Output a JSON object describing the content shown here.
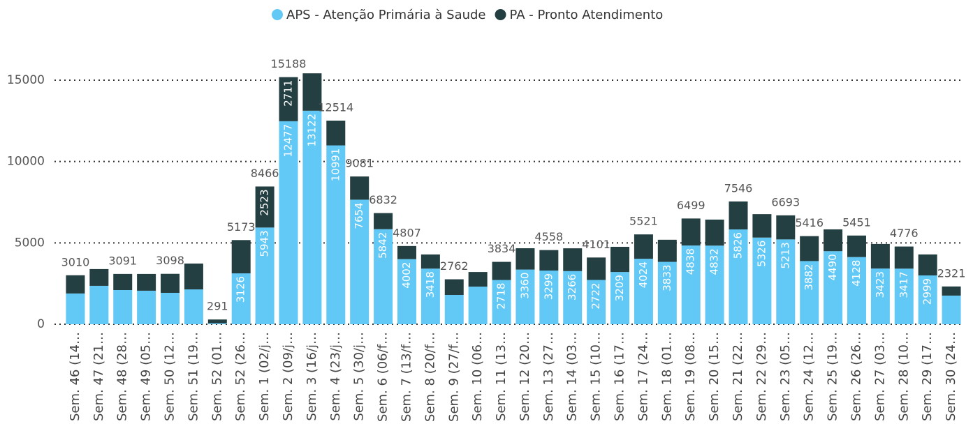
{
  "chart_data": {
    "type": "stacked-bar",
    "categories": [
      "Sem. 46 (14…",
      "Sem. 47 (21…",
      "Sem. 48 (28…",
      "Sem. 49 (05…",
      "Sem. 50 (12…",
      "Sem. 51 (19…",
      "Sem. 52 (01…",
      "Sem. 52 (26…",
      "Sem. 1 (02/j…",
      "Sem. 2 (09/j…",
      "Sem. 3 (16/j…",
      "Sem. 4 (23/j…",
      "Sem. 5 (30/j…",
      "Sem. 6 (06/f…",
      "Sem. 7 (13/f…",
      "Sem. 8 (20/f…",
      "Sem. 9 (27/f…",
      "Sem. 10 (06…",
      "Sem. 11 (13…",
      "Sem. 12 (20…",
      "Sem. 13 (27…",
      "Sem. 14 (03…",
      "Sem. 15 (10…",
      "Sem. 16 (17…",
      "Sem. 17 (24…",
      "Sem. 18 (01…",
      "Sem. 19 (08…",
      "Sem. 20 (15…",
      "Sem. 21 (22…",
      "Sem. 22 (29…",
      "Sem. 23 (05…",
      "Sem. 24 (12…",
      "Sem. 25 (19…",
      "Sem. 26 (26…",
      "Sem. 27 (03…",
      "Sem. 28 (10…",
      "Sem. 29 (17…",
      "Sem. 30 (24…"
    ],
    "series": [
      {
        "name": "APS - Atenção Primária à Saude",
        "color": "#62C8F6",
        "values": [
          1890,
          2360,
          2100,
          2060,
          1930,
          2140,
          60,
          3126,
          5943,
          12477,
          13122,
          10991,
          7654,
          5842,
          4002,
          3418,
          1800,
          2310,
          2718,
          3360,
          3299,
          3266,
          2722,
          3209,
          4024,
          3833,
          4838,
          4832,
          5826,
          5326,
          5213,
          3882,
          4490,
          4128,
          3423,
          3417,
          2999,
          1760
        ],
        "value_labels": [
          null,
          null,
          null,
          null,
          null,
          null,
          null,
          "3126",
          "5943",
          "12477",
          "13122",
          "10991",
          "7654",
          "5842",
          "4002",
          "3418",
          null,
          null,
          "2718",
          "3360",
          "3299",
          "3266",
          "2722",
          "3209",
          "4024",
          "3833",
          "4838",
          "4832",
          "5826",
          "5326",
          "5213",
          "3882",
          "4490",
          "4128",
          "3423",
          "3417",
          "2999",
          null
        ]
      },
      {
        "name": "PA - Pronto Atendimento",
        "color": "#243F42",
        "values": [
          1120,
          1030,
          991,
          1030,
          1168,
          1590,
          231,
          2047,
          2523,
          2711,
          2300,
          1523,
          1427,
          990,
          805,
          870,
          962,
          900,
          1116,
          1310,
          1259,
          1400,
          1379,
          1550,
          1497,
          1360,
          1661,
          1600,
          1720,
          1440,
          1480,
          1534,
          1340,
          1323,
          1510,
          1359,
          1290,
          561
        ],
        "value_labels": [
          null,
          null,
          null,
          null,
          null,
          null,
          null,
          null,
          "2523",
          "2711",
          null,
          null,
          null,
          null,
          null,
          null,
          null,
          null,
          null,
          null,
          null,
          null,
          null,
          null,
          null,
          null,
          null,
          null,
          null,
          null,
          null,
          null,
          null,
          null,
          null,
          null,
          null,
          null
        ]
      }
    ],
    "totals": [
      3010,
      null,
      3091,
      null,
      3098,
      null,
      291,
      5173,
      8466,
      15188,
      null,
      12514,
      9081,
      6832,
      4807,
      null,
      2762,
      null,
      3834,
      null,
      4558,
      null,
      4101,
      null,
      5521,
      null,
      6499,
      null,
      7546,
      null,
      6693,
      5416,
      null,
      5451,
      null,
      4776,
      null,
      2321
    ],
    "ylim": [
      0,
      16000
    ],
    "yticks": [
      0,
      5000,
      10000,
      15000
    ],
    "grid": true,
    "legend": "top"
  }
}
